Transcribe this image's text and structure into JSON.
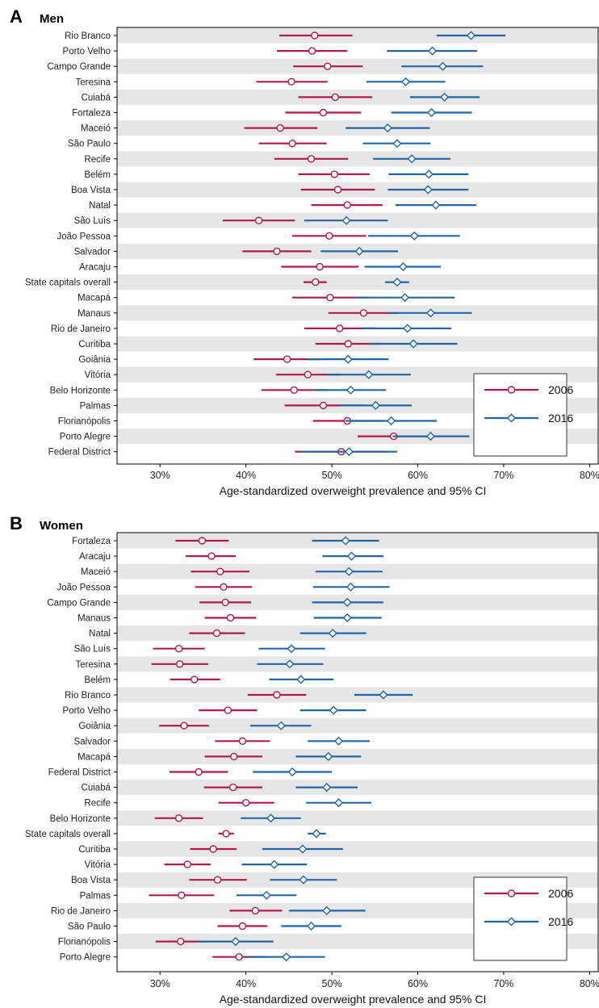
{
  "colors": {
    "y2006": "#b2184b",
    "y2016": "#2166a8",
    "band": "#e6e6e6"
  },
  "chart_data": [
    {
      "panel": "A",
      "title": "Men",
      "type": "forest",
      "xlabel": "Age-standardized overweight prevalence and 95% CI",
      "xlim": [
        25,
        81
      ],
      "xticks": [
        30,
        40,
        50,
        60,
        70,
        80
      ],
      "xtick_labels": [
        "30%",
        "40%",
        "50%",
        "60%",
        "70%",
        "80%"
      ],
      "legend_position": "bottom-right",
      "series": [
        {
          "name": "2006",
          "marker": "circle"
        },
        {
          "name": "2016",
          "marker": "diamond"
        }
      ],
      "rows": [
        {
          "label": "Rio Branco",
          "y2006": [
            48.0,
            43.9,
            52.4
          ],
          "y2016": [
            66.2,
            62.2,
            70.2
          ]
        },
        {
          "label": "Porto Velho",
          "y2006": [
            47.7,
            43.6,
            51.8
          ],
          "y2016": [
            61.7,
            56.4,
            66.9
          ]
        },
        {
          "label": "Campo Grande",
          "y2006": [
            49.5,
            45.5,
            53.6
          ],
          "y2016": [
            62.9,
            58.1,
            67.6
          ]
        },
        {
          "label": "Teresina",
          "y2006": [
            45.3,
            41.2,
            49.5
          ],
          "y2016": [
            58.6,
            54.0,
            63.2
          ]
        },
        {
          "label": "Cuiabá",
          "y2006": [
            50.4,
            46.1,
            54.7
          ],
          "y2016": [
            63.1,
            59.1,
            67.2
          ]
        },
        {
          "label": "Fortaleza",
          "y2006": [
            49.0,
            44.6,
            53.4
          ],
          "y2016": [
            61.6,
            56.9,
            66.3
          ]
        },
        {
          "label": "Maceió",
          "y2006": [
            44.0,
            39.8,
            48.3
          ],
          "y2016": [
            56.5,
            51.6,
            61.4
          ]
        },
        {
          "label": "São Paulo",
          "y2006": [
            45.4,
            41.5,
            49.4
          ],
          "y2016": [
            57.6,
            53.6,
            61.5
          ]
        },
        {
          "label": "Recife",
          "y2006": [
            47.6,
            43.3,
            51.9
          ],
          "y2016": [
            59.3,
            54.8,
            63.8
          ]
        },
        {
          "label": "Belém",
          "y2006": [
            50.3,
            46.1,
            54.4
          ],
          "y2016": [
            61.3,
            56.6,
            65.9
          ]
        },
        {
          "label": "Boa Vista",
          "y2006": [
            50.7,
            46.4,
            55.0
          ],
          "y2016": [
            61.2,
            56.5,
            65.9
          ]
        },
        {
          "label": "Natal",
          "y2006": [
            51.8,
            47.6,
            55.9
          ],
          "y2016": [
            62.1,
            57.4,
            66.8
          ]
        },
        {
          "label": "São Luís",
          "y2006": [
            41.5,
            37.3,
            45.7
          ],
          "y2016": [
            51.7,
            46.8,
            56.5
          ]
        },
        {
          "label": "João Pessoa",
          "y2006": [
            49.7,
            45.4,
            54.0
          ],
          "y2016": [
            59.6,
            54.2,
            64.9
          ]
        },
        {
          "label": "Salvador",
          "y2006": [
            43.6,
            39.6,
            47.6
          ],
          "y2016": [
            53.2,
            48.7,
            57.7
          ]
        },
        {
          "label": "Aracaju",
          "y2006": [
            48.6,
            44.1,
            53.1
          ],
          "y2016": [
            58.3,
            53.8,
            62.7
          ]
        },
        {
          "label": "State capitals overall",
          "y2006": [
            48.1,
            46.7,
            49.4
          ],
          "y2016": [
            57.6,
            56.2,
            59.0
          ]
        },
        {
          "label": "Macapá",
          "y2006": [
            49.8,
            45.4,
            54.2
          ],
          "y2016": [
            58.5,
            52.7,
            64.3
          ]
        },
        {
          "label": "Manaus",
          "y2006": [
            53.7,
            49.6,
            57.8
          ],
          "y2016": [
            61.5,
            56.7,
            66.3
          ]
        },
        {
          "label": "Rio de Janeiro",
          "y2006": [
            50.9,
            46.8,
            55.1
          ],
          "y2016": [
            58.8,
            53.6,
            63.9
          ]
        },
        {
          "label": "Curitiba",
          "y2006": [
            51.9,
            48.1,
            55.7
          ],
          "y2016": [
            59.5,
            54.4,
            64.6
          ]
        },
        {
          "label": "Goiânia",
          "y2006": [
            44.8,
            40.9,
            48.7
          ],
          "y2016": [
            51.9,
            47.2,
            56.6
          ]
        },
        {
          "label": "Vitória",
          "y2006": [
            47.2,
            43.5,
            51.0
          ],
          "y2016": [
            54.3,
            49.4,
            59.2
          ]
        },
        {
          "label": "Belo Horizonte",
          "y2006": [
            45.6,
            41.8,
            49.5
          ],
          "y2016": [
            52.2,
            48.0,
            56.3
          ]
        },
        {
          "label": "Palmas",
          "y2006": [
            49.0,
            44.5,
            53.6
          ],
          "y2016": [
            55.1,
            50.9,
            59.3
          ]
        },
        {
          "label": "Florianópolis",
          "y2006": [
            51.8,
            47.8,
            55.9
          ],
          "y2016": [
            56.9,
            51.6,
            62.2
          ]
        },
        {
          "label": "Porto Alegre",
          "y2006": [
            57.2,
            53.0,
            61.4
          ],
          "y2016": [
            61.5,
            57.1,
            66.0
          ]
        },
        {
          "label": "Federal District",
          "y2006": [
            51.1,
            45.7,
            56.5
          ],
          "y2016": [
            52.0,
            46.4,
            57.6
          ]
        }
      ]
    },
    {
      "panel": "B",
      "title": "Women",
      "type": "forest",
      "xlabel": "Age-standardized overweight prevalence and 95% CI",
      "xlim": [
        25,
        81
      ],
      "xticks": [
        30,
        40,
        50,
        60,
        70,
        80
      ],
      "xtick_labels": [
        "30%",
        "40%",
        "50%",
        "60%",
        "70%",
        "80%"
      ],
      "legend_position": "bottom-right",
      "series": [
        {
          "name": "2006",
          "marker": "circle"
        },
        {
          "name": "2016",
          "marker": "diamond"
        }
      ],
      "rows": [
        {
          "label": "Fortaleza",
          "y2006": [
            34.9,
            31.8,
            38.0
          ],
          "y2016": [
            51.6,
            47.7,
            55.5
          ]
        },
        {
          "label": "Aracaju",
          "y2006": [
            36.0,
            33.0,
            38.8
          ],
          "y2016": [
            52.3,
            48.9,
            56.0
          ]
        },
        {
          "label": "Maceió",
          "y2006": [
            37.0,
            33.6,
            40.4
          ],
          "y2016": [
            52.0,
            48.1,
            55.9
          ]
        },
        {
          "label": "João Pessoa",
          "y2006": [
            37.4,
            34.1,
            40.7
          ],
          "y2016": [
            52.2,
            47.8,
            56.7
          ]
        },
        {
          "label": "Campo Grande",
          "y2006": [
            37.6,
            34.6,
            40.6
          ],
          "y2016": [
            51.8,
            47.7,
            56.0
          ]
        },
        {
          "label": "Manaus",
          "y2006": [
            38.2,
            35.2,
            41.2
          ],
          "y2016": [
            51.8,
            47.9,
            55.8
          ]
        },
        {
          "label": "Natal",
          "y2006": [
            36.6,
            33.4,
            39.9
          ],
          "y2016": [
            50.1,
            46.3,
            54.0
          ]
        },
        {
          "label": "São Luís",
          "y2006": [
            32.2,
            29.2,
            35.2
          ],
          "y2016": [
            45.3,
            41.5,
            49.2
          ]
        },
        {
          "label": "Teresina",
          "y2006": [
            32.3,
            29.0,
            35.6
          ],
          "y2016": [
            45.1,
            41.3,
            49.0
          ]
        },
        {
          "label": "Belém",
          "y2006": [
            34.0,
            31.2,
            37.0
          ],
          "y2016": [
            46.4,
            42.7,
            50.2
          ]
        },
        {
          "label": "Rio Branco",
          "y2006": [
            43.6,
            40.2,
            47.0
          ],
          "y2016": [
            56.0,
            52.6,
            59.4
          ]
        },
        {
          "label": "Porto Velho",
          "y2006": [
            37.9,
            34.5,
            41.3
          ],
          "y2016": [
            50.2,
            46.3,
            54.0
          ]
        },
        {
          "label": "Goiânia",
          "y2006": [
            32.8,
            29.9,
            35.7
          ],
          "y2016": [
            44.1,
            40.5,
            47.6
          ]
        },
        {
          "label": "Salvador",
          "y2006": [
            39.6,
            36.4,
            42.8
          ],
          "y2016": [
            50.8,
            47.2,
            54.4
          ]
        },
        {
          "label": "Macapá",
          "y2006": [
            38.6,
            35.2,
            41.9
          ],
          "y2016": [
            49.6,
            45.8,
            53.4
          ]
        },
        {
          "label": "Federal District",
          "y2006": [
            34.5,
            31.1,
            37.9
          ],
          "y2016": [
            45.4,
            40.8,
            50.0
          ]
        },
        {
          "label": "Cuiabá",
          "y2006": [
            38.5,
            35.1,
            41.9
          ],
          "y2016": [
            49.4,
            45.8,
            53.0
          ]
        },
        {
          "label": "Recife",
          "y2006": [
            40.0,
            36.8,
            43.3
          ],
          "y2016": [
            50.8,
            47.0,
            54.6
          ]
        },
        {
          "label": "Belo Horizonte",
          "y2006": [
            32.2,
            29.4,
            35.0
          ],
          "y2016": [
            42.9,
            39.4,
            46.4
          ]
        },
        {
          "label": "State capitals overall",
          "y2006": [
            37.7,
            36.8,
            38.6
          ],
          "y2016": [
            48.2,
            47.2,
            49.3
          ]
        },
        {
          "label": "Curitiba",
          "y2006": [
            36.2,
            33.5,
            38.9
          ],
          "y2016": [
            46.6,
            41.9,
            51.3
          ]
        },
        {
          "label": "Vitória",
          "y2006": [
            33.2,
            30.5,
            35.9
          ],
          "y2016": [
            43.3,
            39.5,
            47.1
          ]
        },
        {
          "label": "Boa Vista",
          "y2006": [
            36.7,
            33.4,
            40.1
          ],
          "y2016": [
            46.7,
            42.8,
            50.6
          ]
        },
        {
          "label": "Palmas",
          "y2006": [
            32.5,
            28.7,
            36.3
          ],
          "y2016": [
            42.4,
            38.9,
            45.9
          ]
        },
        {
          "label": "Rio de Janeiro",
          "y2006": [
            41.1,
            38.1,
            44.2
          ],
          "y2016": [
            49.4,
            45.0,
            53.9
          ]
        },
        {
          "label": "São Paulo",
          "y2006": [
            39.6,
            36.7,
            42.5
          ],
          "y2016": [
            47.6,
            44.1,
            51.1
          ]
        },
        {
          "label": "Florianópolis",
          "y2006": [
            32.4,
            29.5,
            35.3
          ],
          "y2016": [
            38.8,
            34.4,
            43.2
          ]
        },
        {
          "label": "Porto Alegre",
          "y2006": [
            39.2,
            36.1,
            42.4
          ],
          "y2016": [
            44.7,
            40.2,
            49.2
          ]
        }
      ]
    }
  ]
}
